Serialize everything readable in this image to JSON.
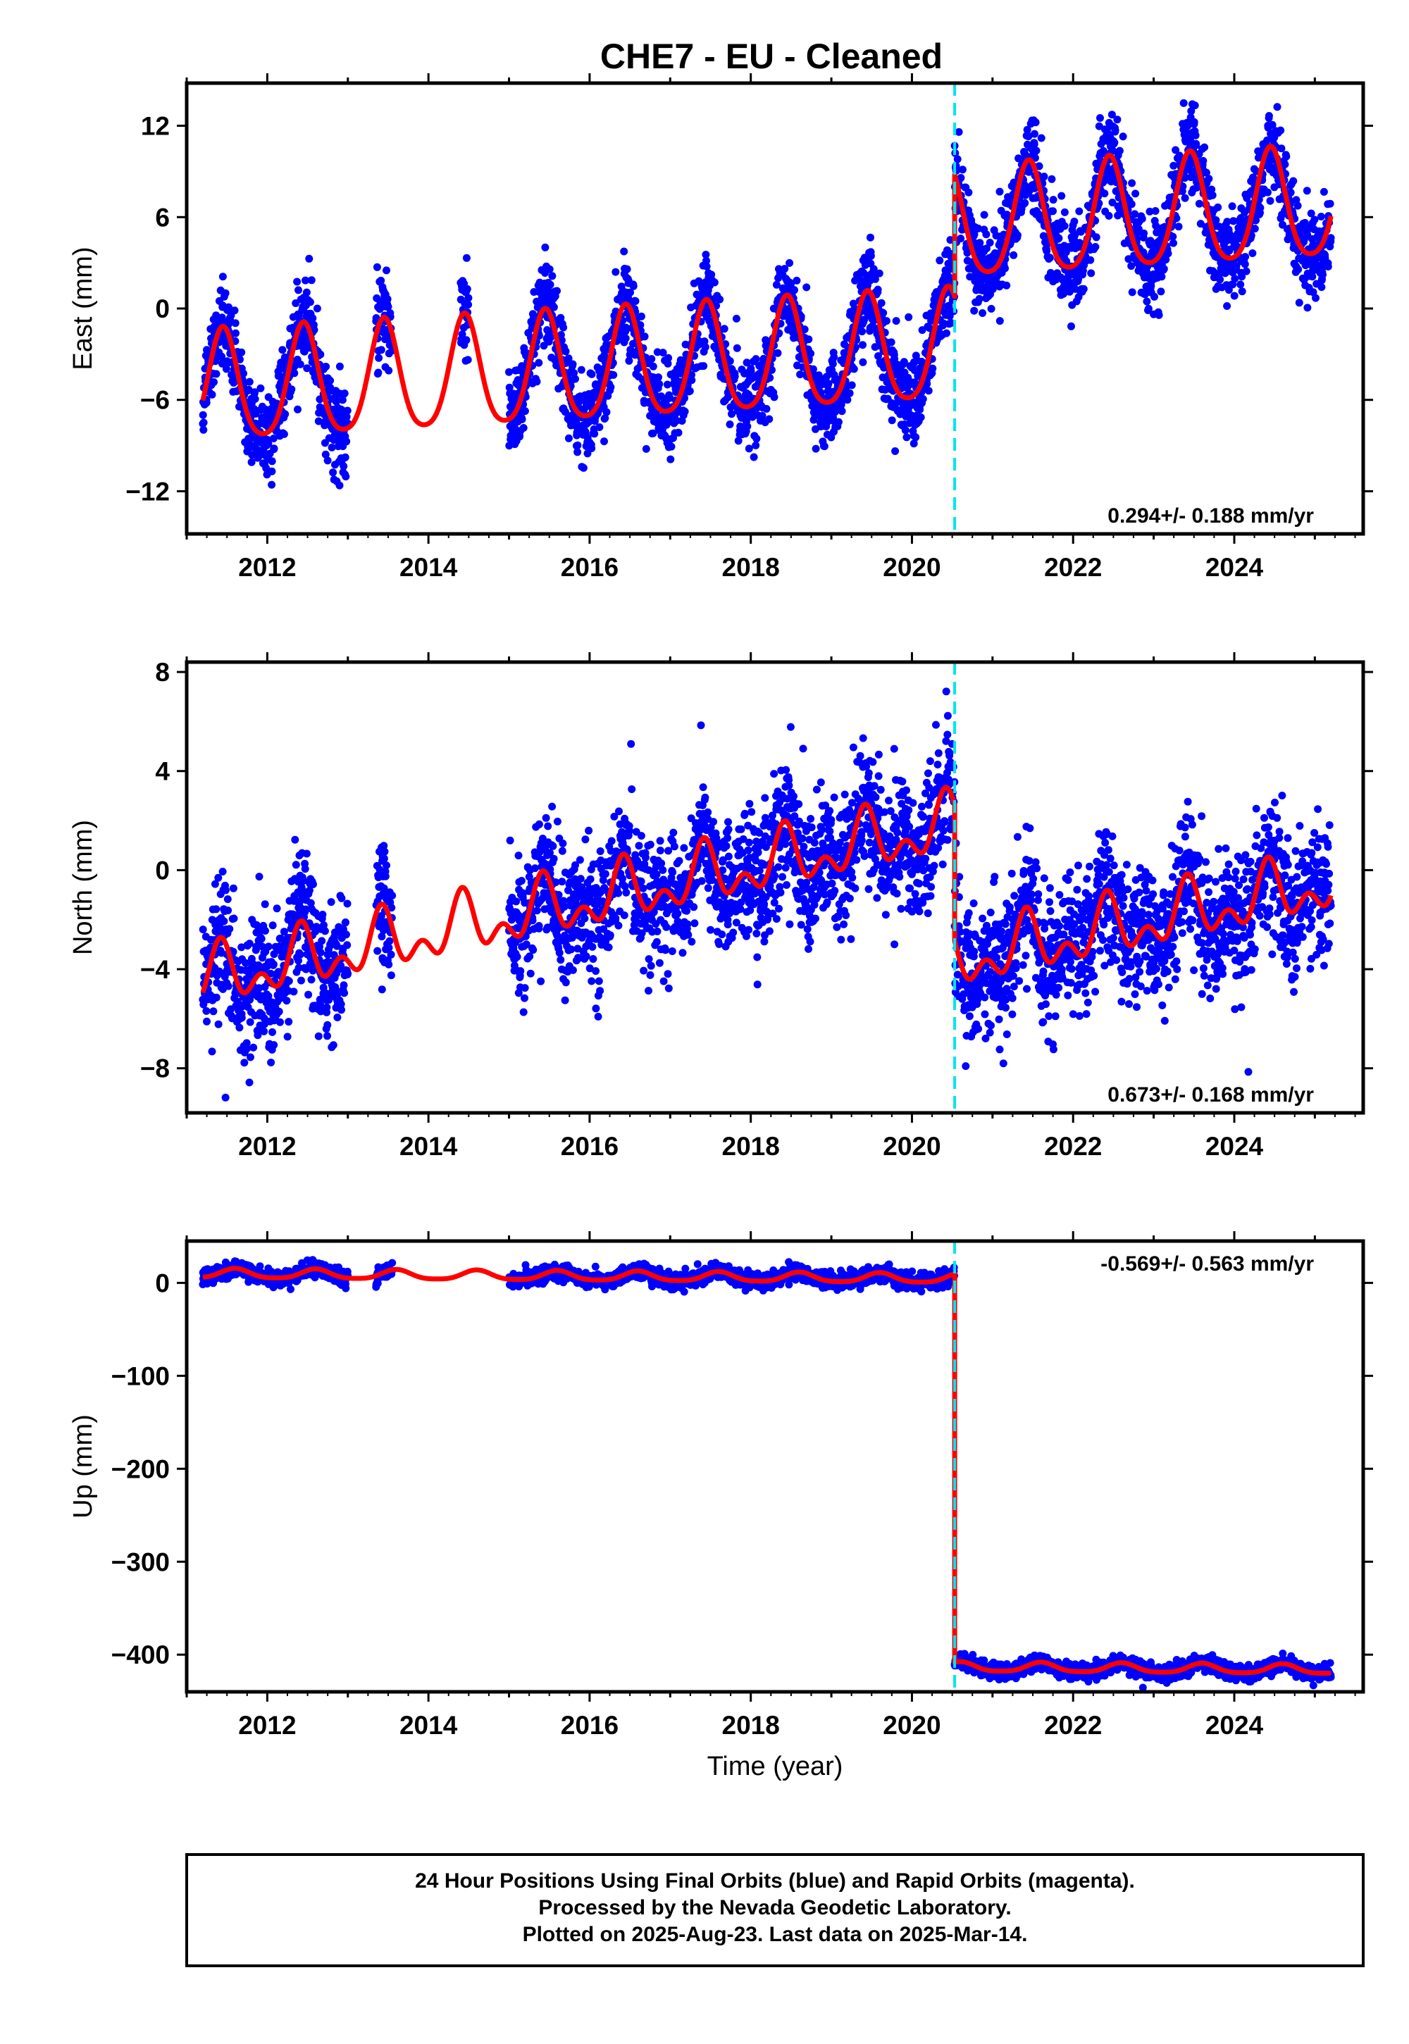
{
  "title": "CHE7  - EU - Cleaned",
  "colors": {
    "final_orbits": "#0000ff",
    "model": "#ff0000",
    "offset_marker": "#00e5ee"
  },
  "chart_data": [
    {
      "type": "scatter",
      "name": "east",
      "ylabel": "East (mm)",
      "xlabel": "",
      "xlim": [
        2011.0,
        2025.6
      ],
      "ylim": [
        -14.8,
        14.8
      ],
      "yticks": [
        12,
        6,
        0,
        -6,
        -12
      ],
      "yticks_labels": [
        "12",
        "6",
        "0",
        "−6",
        "−12"
      ],
      "xticks": [
        2012,
        2014,
        2016,
        2018,
        2020,
        2022,
        2024
      ],
      "xticks_labels": [
        "2012",
        "2014",
        "2016",
        "2018",
        "2020",
        "2022",
        "2024"
      ],
      "rate": "0.294+/- 0.188 mm/yr",
      "rate_position": "bottom-right",
      "offset_epoch": 2020.53,
      "data_segments": [
        [
          2011.2,
          2013.0
        ],
        [
          2013.35,
          2013.55
        ],
        [
          2014.4,
          2014.5
        ],
        [
          2015.0,
          2025.2
        ]
      ],
      "model": {
        "pre_offset_base": -5.5,
        "trend": 0.294,
        "annual_amp": 3.6,
        "annual_phase_peak": 0.45,
        "semiannual_amp": 0.6,
        "offset_jump": 8.0
      },
      "noise_sd": 1.4
    },
    {
      "type": "scatter",
      "name": "north",
      "ylabel": "North (mm)",
      "xlabel": "",
      "xlim": [
        2011.0,
        2025.6
      ],
      "ylim": [
        -9.8,
        8.4
      ],
      "yticks": [
        8,
        4,
        0,
        -4,
        -8
      ],
      "yticks_labels": [
        "8",
        "4",
        "0",
        "−4",
        "−8"
      ],
      "xticks": [
        2012,
        2014,
        2016,
        2018,
        2020,
        2022,
        2024
      ],
      "xticks_labels": [
        "2012",
        "2014",
        "2016",
        "2018",
        "2020",
        "2022",
        "2024"
      ],
      "rate": "0.673+/- 0.168 mm/yr",
      "rate_position": "bottom-right",
      "offset_epoch": 2020.53,
      "data_segments": [
        [
          2011.2,
          2013.0
        ],
        [
          2013.35,
          2013.55
        ],
        [
          2015.0,
          2025.2
        ]
      ],
      "model": {
        "pre_offset_base": -4.6,
        "trend": 0.673,
        "annual_amp": 0.9,
        "annual_phase_peak": 0.42,
        "semiannual_amp": 0.7,
        "offset_jump": -5.5
      },
      "noise_sd": 1.3
    },
    {
      "type": "scatter",
      "name": "up",
      "ylabel": "Up (mm)",
      "xlabel": "Time (year)",
      "xlim": [
        2011.0,
        2025.6
      ],
      "ylim": [
        -440,
        45
      ],
      "yticks": [
        0,
        -100,
        -200,
        -300,
        -400
      ],
      "yticks_labels": [
        "0",
        "−100",
        "−200",
        "−300",
        "−400"
      ],
      "xticks": [
        2012,
        2014,
        2016,
        2018,
        2020,
        2022,
        2024
      ],
      "xticks_labels": [
        "2012",
        "2014",
        "2016",
        "2018",
        "2020",
        "2022",
        "2024"
      ],
      "rate": "-0.569+/- 0.563 mm/yr",
      "rate_position": "top-right",
      "offset_epoch": 2020.53,
      "data_segments": [
        [
          2011.2,
          2013.0
        ],
        [
          2013.35,
          2013.55
        ],
        [
          2015.0,
          2025.2
        ]
      ],
      "model": {
        "pre_offset_base": 10,
        "trend": -0.569,
        "annual_amp": 5,
        "annual_phase_peak": 0.6,
        "semiannual_amp": 1,
        "offset_jump": -418
      },
      "noise_sd": 4
    }
  ],
  "footer": {
    "line1": "24 Hour Positions Using Final Orbits (blue) and Rapid Orbits (magenta).",
    "line2": "Processed by the Nevada Geodetic Laboratory.",
    "line3": "Plotted on 2025-Aug-23. Last data on 2025-Mar-14."
  }
}
